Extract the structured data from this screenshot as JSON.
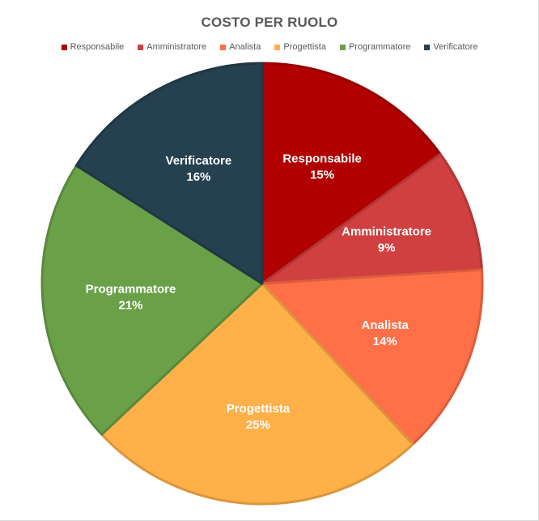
{
  "chart_data": {
    "type": "pie",
    "title": "COSTO PER RUOLO",
    "legend_position": "top",
    "categories": [
      "Responsabile",
      "Amministratore",
      "Analista",
      "Progettista",
      "Programmatore",
      "Verificatore"
    ],
    "values": [
      15,
      9,
      14,
      25,
      21,
      16
    ],
    "labels": [
      "15%",
      "9%",
      "14%",
      "25%",
      "21%",
      "16%"
    ],
    "colors": [
      "#b00000",
      "#d04040",
      "#ff6f48",
      "#ffb048",
      "#6aa048",
      "#25414f"
    ]
  }
}
